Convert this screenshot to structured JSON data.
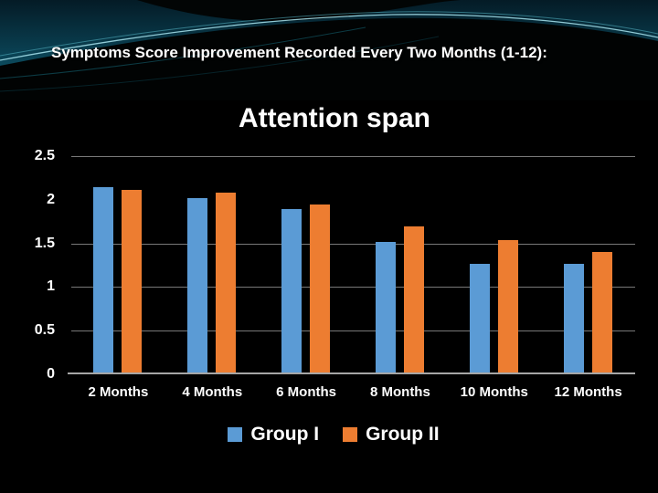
{
  "slide": {
    "title": "Symptoms Score Improvement Recorded Every Two Months (1-12):"
  },
  "chart_data": {
    "type": "bar",
    "title": "Attention span",
    "categories": [
      "2 Months",
      "4 Months",
      "6 Months",
      "8 Months",
      "10 Months",
      "12 Months"
    ],
    "series": [
      {
        "name": "Group I",
        "color": "#5b9bd5",
        "values": [
          2.12,
          2.0,
          1.87,
          1.5,
          1.24,
          1.24
        ]
      },
      {
        "name": "Group II",
        "color": "#ed7d31",
        "values": [
          2.09,
          2.06,
          1.93,
          1.67,
          1.52,
          1.38
        ]
      }
    ],
    "xlabel": "",
    "ylabel": "",
    "ylim": [
      0,
      2.5
    ],
    "yticks": [
      0,
      0.5,
      1,
      1.5,
      2,
      2.5
    ],
    "ytick_labels": [
      "0",
      "0.5",
      "1",
      "1.5",
      "2",
      "2.5"
    ],
    "gridline_values": [
      0.5,
      1,
      1.5,
      2.5
    ],
    "grid": true,
    "legend_position": "bottom",
    "background": "#000000",
    "text_color": "#ffffff",
    "gridline_color": "#787878",
    "axis_line_color": "#a6a6a6"
  }
}
